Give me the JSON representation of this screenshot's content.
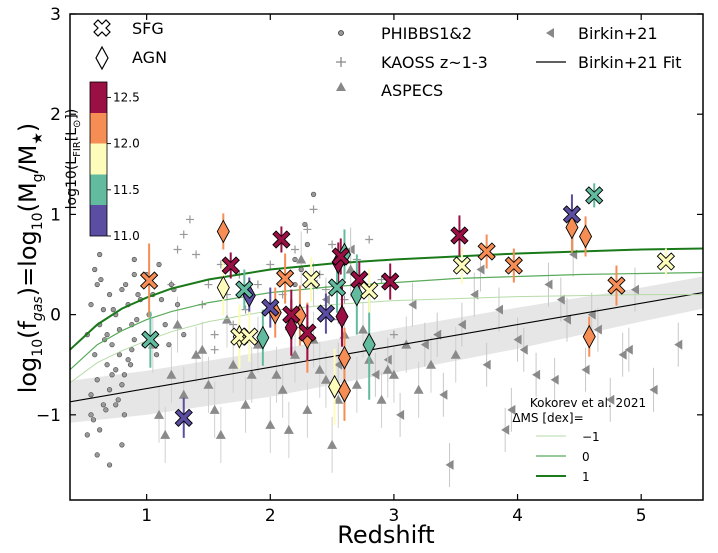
{
  "chart_data": {
    "type": "scatter",
    "xlabel": "Redshift",
    "ylabel_main": "log",
    "ylabel_sub1": "10",
    "ylabel_mid": "(f",
    "ylabel_sub2": "gas",
    "ylabel_mid2": ")=log",
    "ylabel_sub3": "10",
    "ylabel_end": "(M",
    "ylabel_sub4": "g",
    "ylabel_end2": "/M",
    "ylabel_sub5": "★",
    "ylabel_close": ")",
    "xlim": [
      0.38,
      5.5
    ],
    "ylim": [
      -1.85,
      3.0
    ],
    "xticks": [
      1,
      2,
      3,
      4,
      5
    ],
    "yticks": [
      -1,
      0,
      1,
      2,
      3
    ],
    "xtick_labels": [
      "1",
      "2",
      "3",
      "4",
      "5"
    ],
    "ytick_labels": [
      "−1",
      "0",
      "1",
      "2",
      "3"
    ],
    "legend": {
      "sfg": "SFG",
      "agn": "AGN",
      "phibbs": "PHIBBS1&2",
      "kaoss": "KAOSS z~1-3",
      "aspecs": "ASPECS",
      "birkin": "Birkin+21",
      "birkin_fit": "Birkin+21 Fit"
    },
    "colorbar": {
      "label": "log10(L",
      "label_sub": "FIR",
      "label_end": "[L",
      "label_sun": "⊙",
      "label_close": "])",
      "ticks": [
        "11.0",
        "11.5",
        "12.0",
        "12.5"
      ],
      "colors": [
        "#5b4ea2",
        "#63bb9f",
        "#fdfcba",
        "#f58d54",
        "#9a0f44"
      ]
    },
    "ms_legend": {
      "title1": "Kokorev et al. 2021",
      "title2": "ΔMS [dex]=",
      "labels": [
        "−1",
        "0",
        "1"
      ],
      "colors": [
        "#b6dba8",
        "#5aab5c",
        "#1a7a1a"
      ]
    },
    "ms_curves": [
      {
        "name": "-1",
        "x": [
          0.38,
          0.6,
          0.8,
          1.0,
          1.2,
          1.5,
          2.0,
          2.5,
          3.0,
          3.5,
          4.0,
          4.5,
          5.0,
          5.5
        ],
        "y": [
          -0.68,
          -0.48,
          -0.36,
          -0.26,
          -0.17,
          -0.07,
          0.04,
          0.1,
          0.14,
          0.16,
          0.18,
          0.19,
          0.2,
          0.2
        ]
      },
      {
        "name": "0",
        "x": [
          0.38,
          0.6,
          0.8,
          1.0,
          1.2,
          1.5,
          2.0,
          2.5,
          3.0,
          3.5,
          4.0,
          4.5,
          5.0,
          5.5
        ],
        "y": [
          -0.55,
          -0.3,
          -0.16,
          -0.05,
          0.03,
          0.12,
          0.22,
          0.28,
          0.32,
          0.36,
          0.38,
          0.4,
          0.41,
          0.42
        ]
      },
      {
        "name": "1",
        "x": [
          0.38,
          0.6,
          0.8,
          1.0,
          1.2,
          1.5,
          2.0,
          2.5,
          3.0,
          3.5,
          4.0,
          4.5,
          5.0,
          5.5
        ],
        "y": [
          -0.35,
          -0.1,
          0.06,
          0.17,
          0.26,
          0.35,
          0.45,
          0.51,
          0.55,
          0.58,
          0.61,
          0.63,
          0.65,
          0.66
        ]
      }
    ],
    "birkin_fit": {
      "x": [
        0.38,
        5.5
      ],
      "y": [
        -0.87,
        0.22
      ]
    },
    "birkin_band": {
      "x": [
        0.38,
        1.0,
        2.0,
        3.0,
        4.0,
        5.0,
        5.5
      ],
      "upper": [
        -0.66,
        -0.56,
        -0.36,
        -0.14,
        0.07,
        0.27,
        0.38
      ],
      "lower": [
        -1.08,
        -1.0,
        -0.82,
        -0.58,
        -0.34,
        -0.07,
        0.06
      ]
    },
    "phibbs": {
      "x": [
        0.52,
        0.55,
        0.58,
        0.6,
        0.62,
        0.65,
        0.68,
        0.7,
        0.72,
        0.75,
        0.78,
        0.8,
        0.82,
        0.85,
        0.88,
        0.9,
        0.92,
        0.95,
        0.55,
        0.6,
        0.65,
        0.7,
        0.75,
        0.8,
        0.85,
        0.9,
        0.58,
        0.63,
        0.68,
        0.73,
        0.78,
        0.83,
        0.88,
        0.93,
        0.98,
        0.57,
        0.62,
        0.67,
        0.72,
        0.77,
        0.82,
        0.87,
        1.0,
        1.05,
        1.1,
        1.15,
        1.2,
        1.25,
        1.3,
        1.02,
        1.08,
        1.12,
        1.18,
        1.22,
        0.52,
        0.6,
        0.7,
        0.8,
        2.2,
        2.25,
        2.3,
        2.35,
        2.28,
        2.2,
        0.9,
        0.62,
        0.55,
        0.75,
        0.66
      ],
      "y": [
        -0.2,
        0.1,
        -0.4,
        0.3,
        -0.1,
        0.05,
        -0.5,
        0.2,
        -0.3,
        0.0,
        -0.15,
        0.25,
        -0.6,
        0.1,
        -0.35,
        0.4,
        -0.05,
        0.15,
        -0.8,
        -0.65,
        -0.9,
        -0.75,
        -0.55,
        -0.7,
        -0.45,
        -0.25,
        0.45,
        0.35,
        -0.2,
        0.05,
        -0.4,
        0.3,
        -0.1,
        0.2,
        -0.3,
        -1.05,
        -1.15,
        -0.95,
        -0.6,
        -0.85,
        -1.0,
        -0.5,
        0.4,
        0.2,
        0.5,
        -0.1,
        0.3,
        0.1,
        -0.2,
        0.0,
        -0.4,
        0.15,
        -0.3,
        0.25,
        -1.2,
        -1.4,
        -1.5,
        -1.3,
        0.55,
        0.45,
        0.7,
        1.2,
        0.9,
        0.3,
        0.55,
        0.6,
        -1.0,
        -0.9,
        -0.25
      ]
    },
    "kaoss": {
      "x": [
        1.3,
        1.4,
        1.45,
        1.5,
        1.55,
        1.6,
        1.65,
        1.7,
        1.75,
        1.8,
        1.2,
        1.35,
        1.9,
        2.0,
        2.1,
        2.2,
        2.3,
        2.4,
        2.5,
        2.6,
        2.7,
        2.8,
        2.9,
        3.0,
        2.35,
        2.45,
        2.15,
        1.25,
        1.55,
        2.55
      ],
      "y": [
        0.8,
        0.6,
        0.1,
        0.3,
        -0.2,
        0.5,
        0.2,
        -0.1,
        0.4,
        0.05,
        0.3,
        0.95,
        0.3,
        0.5,
        0.2,
        0.65,
        0.85,
        0.4,
        0.7,
        0.15,
        0.55,
        0.75,
        0.35,
        -0.2,
        1.05,
        0.25,
        -0.15,
        0.65,
        -0.35,
        -0.05
      ]
    },
    "aspecs": {
      "x": [
        1.05,
        1.1,
        1.2,
        1.3,
        1.4,
        1.5,
        1.6,
        1.7,
        1.8,
        1.9,
        2.0,
        2.05,
        2.1,
        2.2,
        2.3,
        2.4,
        2.5,
        2.6,
        2.7,
        2.8,
        2.9,
        3.0,
        3.1,
        3.2,
        3.3,
        3.5,
        1.25,
        1.45,
        1.65,
        1.85,
        2.15,
        2.35,
        2.55,
        2.75,
        1.15,
        1.55,
        2.45,
        2.95,
        2.25,
        2.65
      ],
      "y": [
        -0.3,
        -1.0,
        -0.6,
        -0.8,
        -0.4,
        -0.7,
        -1.2,
        -0.5,
        -0.9,
        -0.3,
        -1.1,
        -0.6,
        -0.75,
        -0.4,
        -0.95,
        -0.55,
        -1.3,
        -0.2,
        -0.7,
        -0.45,
        -0.85,
        -0.6,
        -0.3,
        -0.75,
        -0.5,
        -0.4,
        -0.1,
        -0.35,
        -0.05,
        -0.6,
        -1.15,
        -0.25,
        -0.85,
        -0.15,
        -1.2,
        -0.95,
        -0.65,
        -0.55,
        0.55,
        0.45
      ]
    },
    "birkin": {
      "x": [
        2.35,
        2.45,
        2.65,
        2.95,
        3.15,
        3.25,
        3.4,
        3.55,
        3.65,
        3.75,
        3.85,
        3.95,
        4.05,
        4.15,
        4.25,
        4.35,
        4.45,
        4.55,
        4.65,
        4.75,
        4.85,
        4.95,
        5.1,
        5.3,
        2.85,
        3.05,
        3.35,
        3.45,
        3.7,
        4.0,
        4.3,
        4.6,
        4.9,
        2.55,
        3.9,
        4.4
      ],
      "y": [
        0.3,
        0.15,
        0.65,
        -0.45,
        0.1,
        -0.3,
        -0.8,
        -0.1,
        0.2,
        -0.5,
        0.05,
        -0.95,
        -0.35,
        -0.6,
        0.3,
        0.15,
        0.6,
        -0.55,
        -0.15,
        -0.85,
        -0.4,
        0.25,
        -0.75,
        -0.3,
        -0.6,
        -1.0,
        -0.2,
        -1.5,
        0.45,
        -0.25,
        -0.65,
        0.0,
        -0.35,
        -0.5,
        -1.15,
        -0.05
      ]
    },
    "sfg": [
      {
        "z": 1.02,
        "y": 0.34,
        "L": 12.05,
        "e": 0.37
      },
      {
        "z": 1.03,
        "y": -0.25,
        "L": 11.5,
        "e": 0.28
      },
      {
        "z": 1.3,
        "y": -1.03,
        "L": 11.0,
        "e": 0.2
      },
      {
        "z": 1.68,
        "y": 0.49,
        "L": 12.5,
        "e": 0.13
      },
      {
        "z": 1.75,
        "y": -0.22,
        "L": 11.8,
        "e": 0.32
      },
      {
        "z": 1.79,
        "y": 0.25,
        "L": 11.5,
        "e": 0.2
      },
      {
        "z": 1.83,
        "y": -0.22,
        "L": 11.7,
        "e": 0.25
      },
      {
        "z": 2.0,
        "y": 0.07,
        "L": 11.0,
        "e": 0.2
      },
      {
        "z": 2.09,
        "y": 0.75,
        "L": 12.5,
        "e": 0.13
      },
      {
        "z": 2.12,
        "y": 0.36,
        "L": 12.1,
        "e": 0.25
      },
      {
        "z": 2.17,
        "y": 0.0,
        "L": 12.5,
        "e": 0.25
      },
      {
        "z": 2.3,
        "y": -0.18,
        "L": 12.5,
        "e": 0.28
      },
      {
        "z": 2.33,
        "y": 0.35,
        "L": 11.8,
        "e": 0.22
      },
      {
        "z": 2.45,
        "y": 0.01,
        "L": 11.0,
        "e": 0.2
      },
      {
        "z": 2.54,
        "y": 0.27,
        "L": 11.5,
        "e": 0.25
      },
      {
        "z": 2.57,
        "y": 0.58,
        "L": 12.5,
        "e": 0.18
      },
      {
        "z": 2.72,
        "y": 0.35,
        "L": 12.5,
        "e": 0.18
      },
      {
        "z": 2.8,
        "y": 0.24,
        "L": 11.8,
        "e": 0.22
      },
      {
        "z": 2.97,
        "y": 0.33,
        "L": 12.5,
        "e": 0.18
      },
      {
        "z": 3.53,
        "y": 0.79,
        "L": 12.5,
        "e": 0.2
      },
      {
        "z": 3.55,
        "y": 0.49,
        "L": 11.8,
        "e": 0.18
      },
      {
        "z": 3.75,
        "y": 0.63,
        "L": 12.1,
        "e": 0.17
      },
      {
        "z": 3.97,
        "y": 0.49,
        "L": 12.1,
        "e": 0.17
      },
      {
        "z": 4.44,
        "y": 1.0,
        "L": 11.0,
        "e": 0.2
      },
      {
        "z": 4.62,
        "y": 1.19,
        "L": 11.5,
        "e": 0.12
      },
      {
        "z": 4.8,
        "y": 0.29,
        "L": 12.1,
        "e": 0.2
      },
      {
        "z": 5.2,
        "y": 0.53,
        "L": 11.8,
        "e": 0.13
      }
    ],
    "agn": [
      {
        "z": 1.62,
        "y": 0.27,
        "L": 11.8,
        "e": 0.28
      },
      {
        "z": 1.62,
        "y": 0.83,
        "L": 12.1,
        "e": 0.18
      },
      {
        "z": 1.75,
        "y": -0.22,
        "L": 11.8,
        "e": 0.28
      },
      {
        "z": 1.83,
        "y": 0.19,
        "L": 11.0,
        "e": 0.18
      },
      {
        "z": 1.94,
        "y": -0.23,
        "L": 11.5,
        "e": 0.28
      },
      {
        "z": 2.04,
        "y": 0.02,
        "L": 12.1,
        "e": 0.25
      },
      {
        "z": 2.17,
        "y": -0.13,
        "L": 12.5,
        "e": 0.28
      },
      {
        "z": 2.24,
        "y": -0.01,
        "L": 12.1,
        "e": 0.3
      },
      {
        "z": 2.3,
        "y": -0.23,
        "L": 12.1,
        "e": 0.35
      },
      {
        "z": 2.52,
        "y": -0.72,
        "L": 11.8,
        "e": 0.38
      },
      {
        "z": 2.58,
        "y": -0.02,
        "L": 12.5,
        "e": 0.3
      },
      {
        "z": 2.6,
        "y": -0.43,
        "L": 12.1,
        "e": 0.3
      },
      {
        "z": 2.6,
        "y": -0.76,
        "L": 12.1,
        "e": 0.3
      },
      {
        "z": 2.6,
        "y": 0.6,
        "L": 11.5,
        "e": 0.25
      },
      {
        "z": 2.7,
        "y": 0.2,
        "L": 11.5,
        "e": 0.4
      },
      {
        "z": 2.55,
        "y": 0.52,
        "L": 12.5,
        "e": 0.2
      },
      {
        "z": 2.8,
        "y": -0.3,
        "L": 11.5,
        "e": 0.55
      },
      {
        "z": 4.44,
        "y": 0.87,
        "L": 12.1,
        "e": 0.25
      },
      {
        "z": 4.55,
        "y": 0.78,
        "L": 12.1,
        "e": 0.2
      },
      {
        "z": 4.58,
        "y": -0.22,
        "L": 12.1,
        "e": 0.2
      }
    ]
  }
}
